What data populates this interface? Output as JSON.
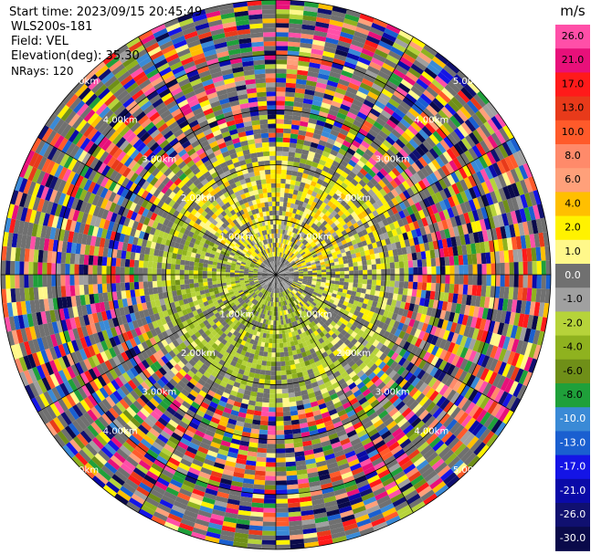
{
  "header": {
    "start_time": "Start time: 2023/09/15 20:45:49",
    "instrument": "WLS200s-181",
    "field": "Field: VEL",
    "elevation": "Elevation(deg): 35.30",
    "nrays": "NRays: 120"
  },
  "chart_data": {
    "type": "heatmap",
    "projection": "polar-ppi",
    "field": "VEL",
    "units": "m/s",
    "nrays": 120,
    "elevation_deg": 35.3,
    "range_rings_km": [
      1.0,
      2.0,
      3.0,
      4.0,
      5.0
    ],
    "range_max_km": 5.0,
    "ring_labels": [
      "1.00km",
      "2.00km",
      "3.00km",
      "4.00km",
      "5.00km"
    ],
    "radial_lines_deg": [
      0,
      30,
      60,
      90,
      120,
      150,
      180,
      210,
      240,
      270,
      300,
      330
    ],
    "colorbar": {
      "title": "m/s",
      "ticks": [
        "26.0",
        "21.0",
        "17.0",
        "13.0",
        "10.0",
        "8.0",
        "6.0",
        "4.0",
        "2.0",
        "1.0",
        "0.0",
        "-1.0",
        "-2.0",
        "-4.0",
        "-6.0",
        "-8.0",
        "-10.0",
        "-13.0",
        "-17.0",
        "-21.0",
        "-26.0",
        "-30.0"
      ],
      "colors": [
        "#ff4fa8",
        "#e8107a",
        "#ff1a1a",
        "#e83a1a",
        "#ff5a2a",
        "#ff8a6a",
        "#ffa07a",
        "#ffbf00",
        "#fff200",
        "#fff88a",
        "#707070",
        "#a0a0a0",
        "#b6d33a",
        "#8fb21f",
        "#6f8f18",
        "#1fa03a",
        "#3a8ad6",
        "#1a5fd0",
        "#1414e6",
        "#0a0aa8",
        "#101070",
        "#0a0a4a"
      ]
    },
    "velocity_pattern": [
      {
        "range_km": [
          0.0,
          1.0
        ],
        "dominant": "0.0 to 2.0, mixed"
      },
      {
        "range_km": [
          1.0,
          2.0
        ],
        "dominant": "positive 1.0 to 2.0 (north-east), negative -1.0 to -4.0 (south)"
      },
      {
        "range_km": [
          2.0,
          2.4
        ],
        "dominant": "-2.0 to 2.0"
      },
      {
        "range_km": [
          2.4,
          5.0
        ],
        "dominant": "noise, all values"
      }
    ]
  }
}
